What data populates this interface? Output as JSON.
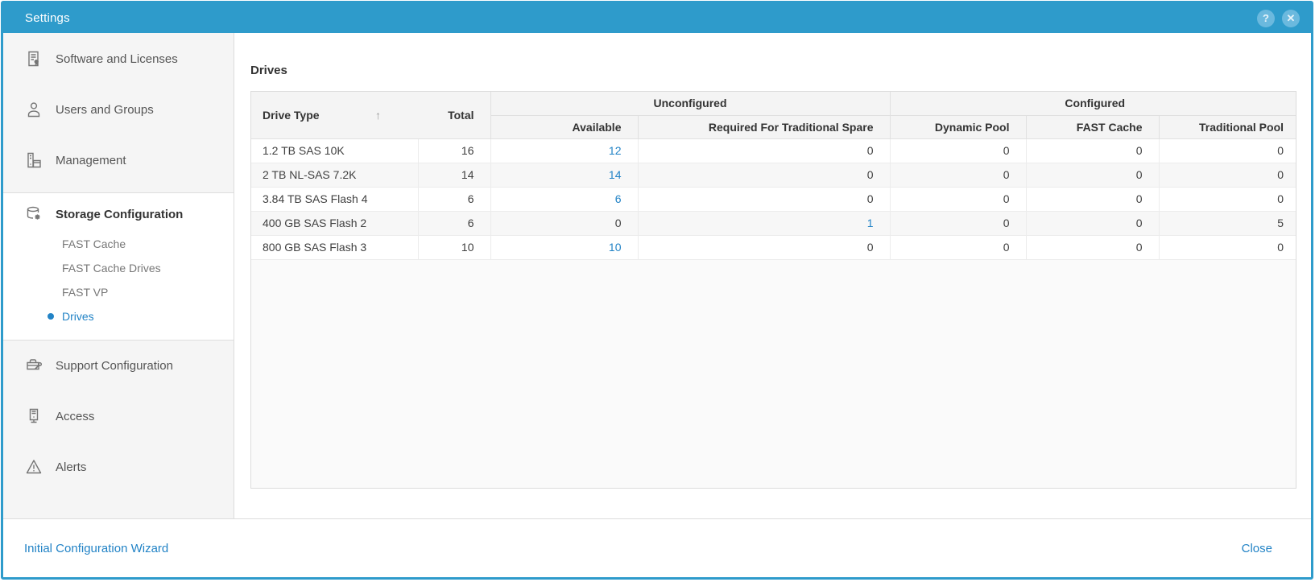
{
  "window": {
    "title": "Settings"
  },
  "titlebar": {
    "help_glyph": "?",
    "close_glyph": "✕"
  },
  "sidebar": {
    "items": [
      {
        "label": "Software and Licenses",
        "icon": "software-licenses-icon"
      },
      {
        "label": "Users and Groups",
        "icon": "users-groups-icon"
      },
      {
        "label": "Management",
        "icon": "management-icon"
      },
      {
        "label": "Storage Configuration",
        "icon": "storage-configuration-icon",
        "children": [
          {
            "label": "FAST Cache",
            "selected": false
          },
          {
            "label": "FAST Cache Drives",
            "selected": false
          },
          {
            "label": "FAST VP",
            "selected": false
          },
          {
            "label": "Drives",
            "selected": true
          }
        ]
      },
      {
        "label": "Support Configuration",
        "icon": "support-configuration-icon"
      },
      {
        "label": "Access",
        "icon": "access-icon"
      },
      {
        "label": "Alerts",
        "icon": "alerts-icon"
      }
    ]
  },
  "main": {
    "title": "Drives",
    "table": {
      "col_drive_type": "Drive Type",
      "sort_icon": "↑",
      "col_total": "Total",
      "group_unconfigured": "Unconfigured",
      "group_configured": "Configured",
      "col_available": "Available",
      "col_required_spare": "Required For Traditional Spare",
      "col_dynamic_pool": "Dynamic Pool",
      "col_fast_cache": "FAST Cache",
      "col_traditional_pool": "Traditional Pool",
      "rows": [
        [
          {
            "text": "1.2 TB SAS 10K"
          },
          {
            "text": "16"
          },
          {
            "text": "12",
            "link": true
          },
          {
            "text": "0"
          },
          {
            "text": "0"
          },
          {
            "text": "0"
          },
          {
            "text": "0"
          }
        ],
        [
          {
            "text": "2 TB NL-SAS 7.2K"
          },
          {
            "text": "14"
          },
          {
            "text": "14",
            "link": true
          },
          {
            "text": "0"
          },
          {
            "text": "0"
          },
          {
            "text": "0"
          },
          {
            "text": "0"
          }
        ],
        [
          {
            "text": "3.84 TB SAS Flash 4"
          },
          {
            "text": "6"
          },
          {
            "text": "6",
            "link": true
          },
          {
            "text": "0"
          },
          {
            "text": "0"
          },
          {
            "text": "0"
          },
          {
            "text": "0"
          }
        ],
        [
          {
            "text": "400 GB SAS Flash 2"
          },
          {
            "text": "6"
          },
          {
            "text": "0"
          },
          {
            "text": "1",
            "link": true
          },
          {
            "text": "0"
          },
          {
            "text": "0"
          },
          {
            "text": "5"
          }
        ],
        [
          {
            "text": "800 GB SAS Flash 3"
          },
          {
            "text": "10"
          },
          {
            "text": "10",
            "link": true
          },
          {
            "text": "0"
          },
          {
            "text": "0"
          },
          {
            "text": "0"
          },
          {
            "text": "0"
          }
        ]
      ]
    }
  },
  "footer": {
    "wizard_link": "Initial Configuration Wizard",
    "close_label": "Close"
  },
  "colors": {
    "titlebar_blue": "#2E9BCB",
    "link_blue": "#2283C6",
    "sidebar_bg": "#F5F5F5",
    "header_bg": "#F4F4F4",
    "stripe_bg": "#F7F7F7"
  }
}
